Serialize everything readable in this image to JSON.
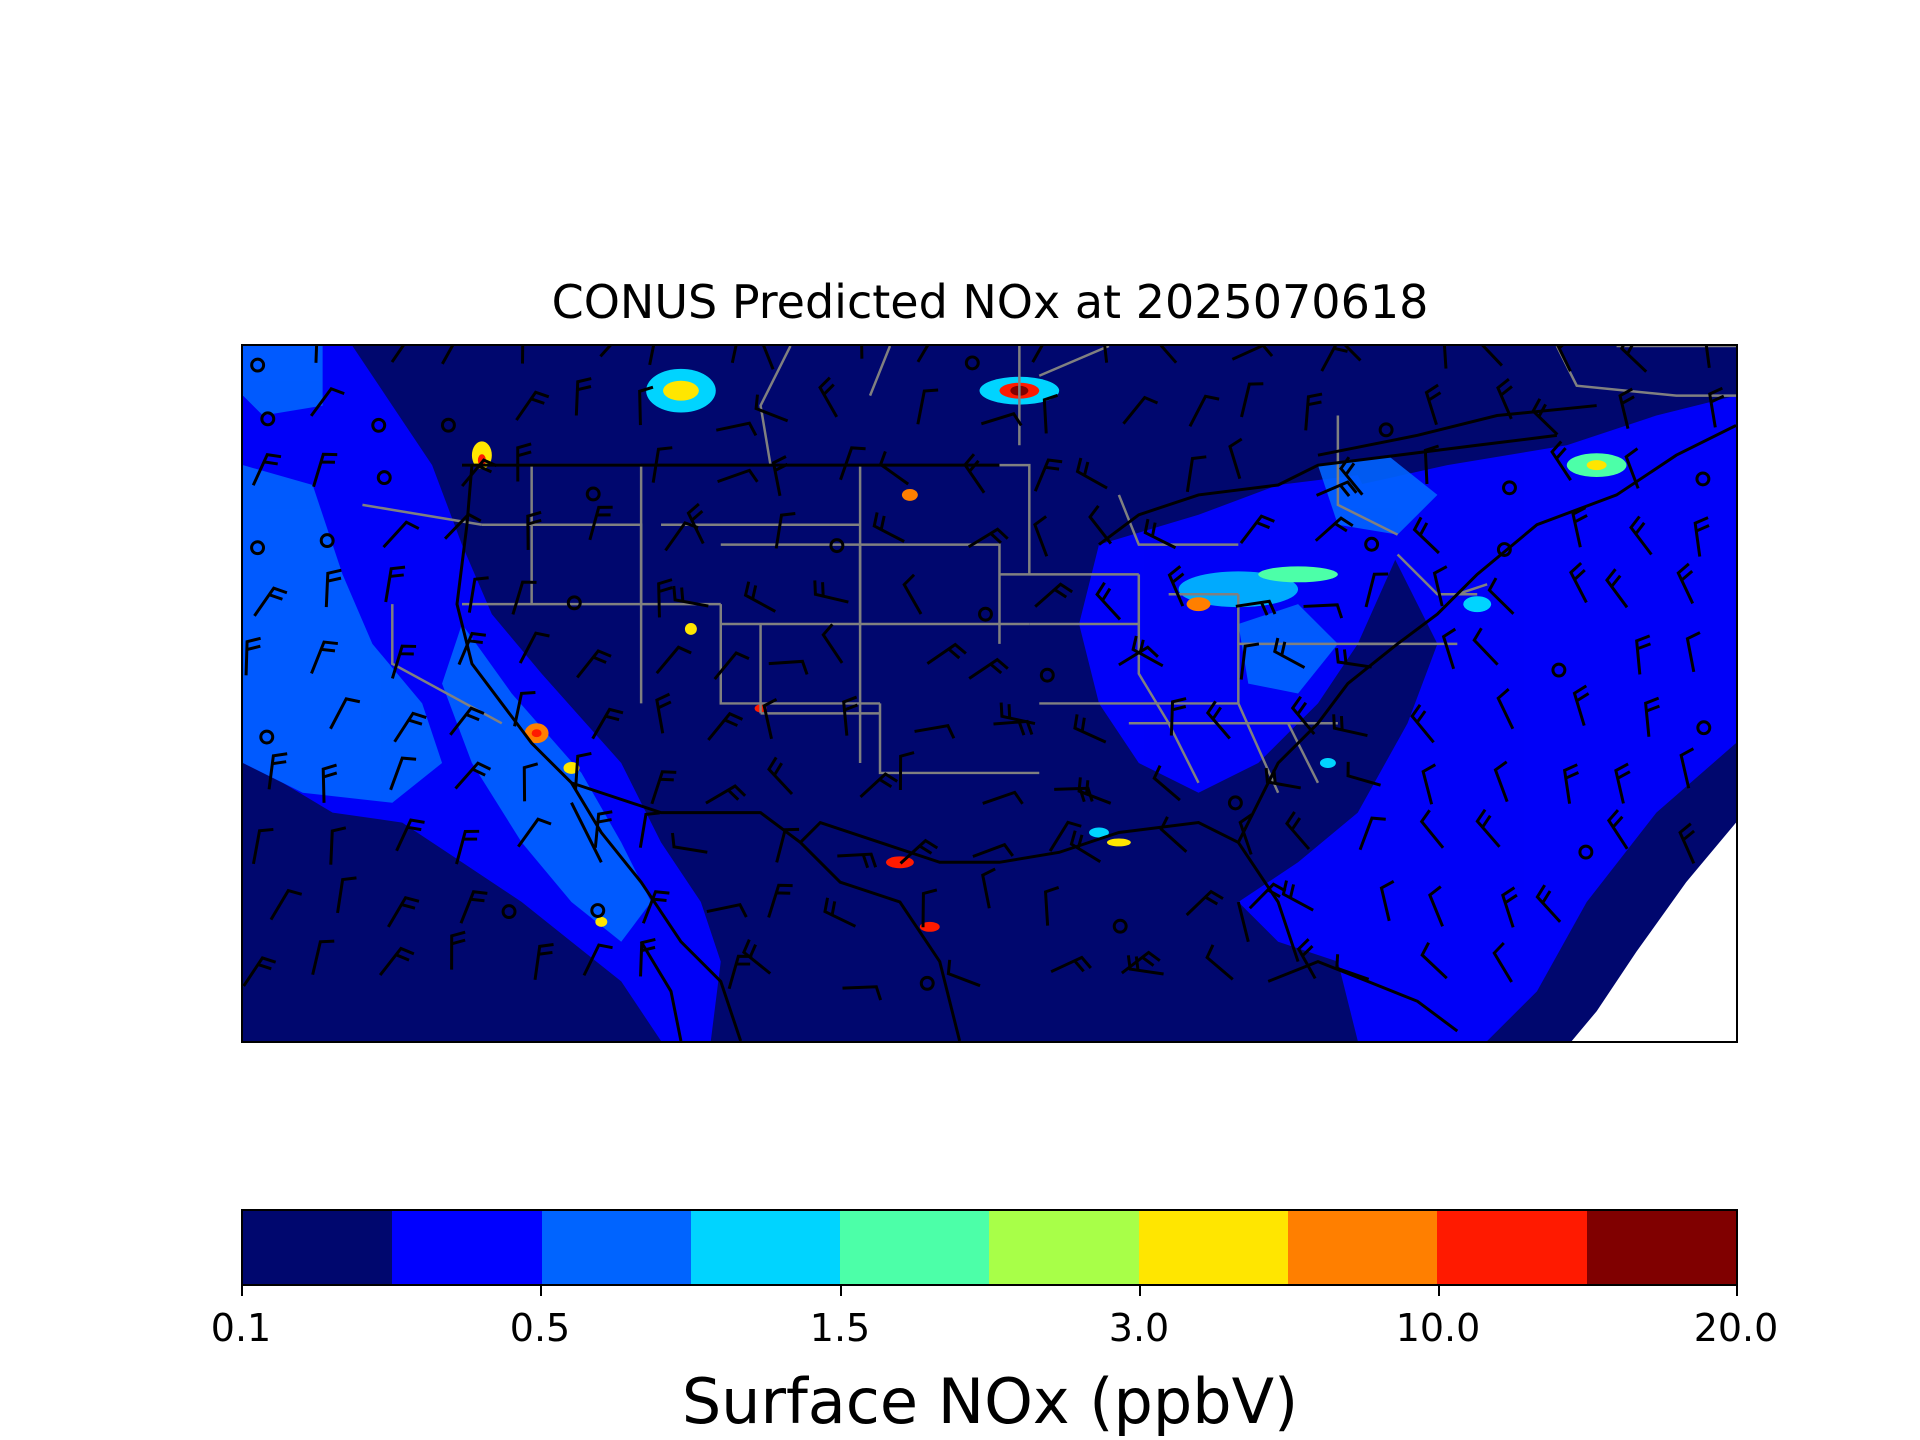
{
  "map": {
    "title": "CONUS Predicted NOx at 2025070618",
    "field": "Surface NOx",
    "overlays": [
      "state-boundaries",
      "coastlines",
      "country-borders",
      "wind-barbs",
      "calm-wind-circles"
    ],
    "colors": {
      "background_fill": "#00076e",
      "state_lines": "#808080",
      "coast_lines": "#000000",
      "barbs": "#000000",
      "missing_data": "#ffffff"
    }
  },
  "colorbar": {
    "label": "Surface NOx (ppbV)",
    "tick_labels": [
      "0.1",
      "0.5",
      "1.5",
      "3.0",
      "10.0",
      "20.0"
    ],
    "bins": [
      "#00076e",
      "#0000ff",
      "#0064ff",
      "#00d4ff",
      "#4cffa8",
      "#a8ff48",
      "#ffe600",
      "#ff7f00",
      "#ff1a00",
      "#800000"
    ]
  }
}
